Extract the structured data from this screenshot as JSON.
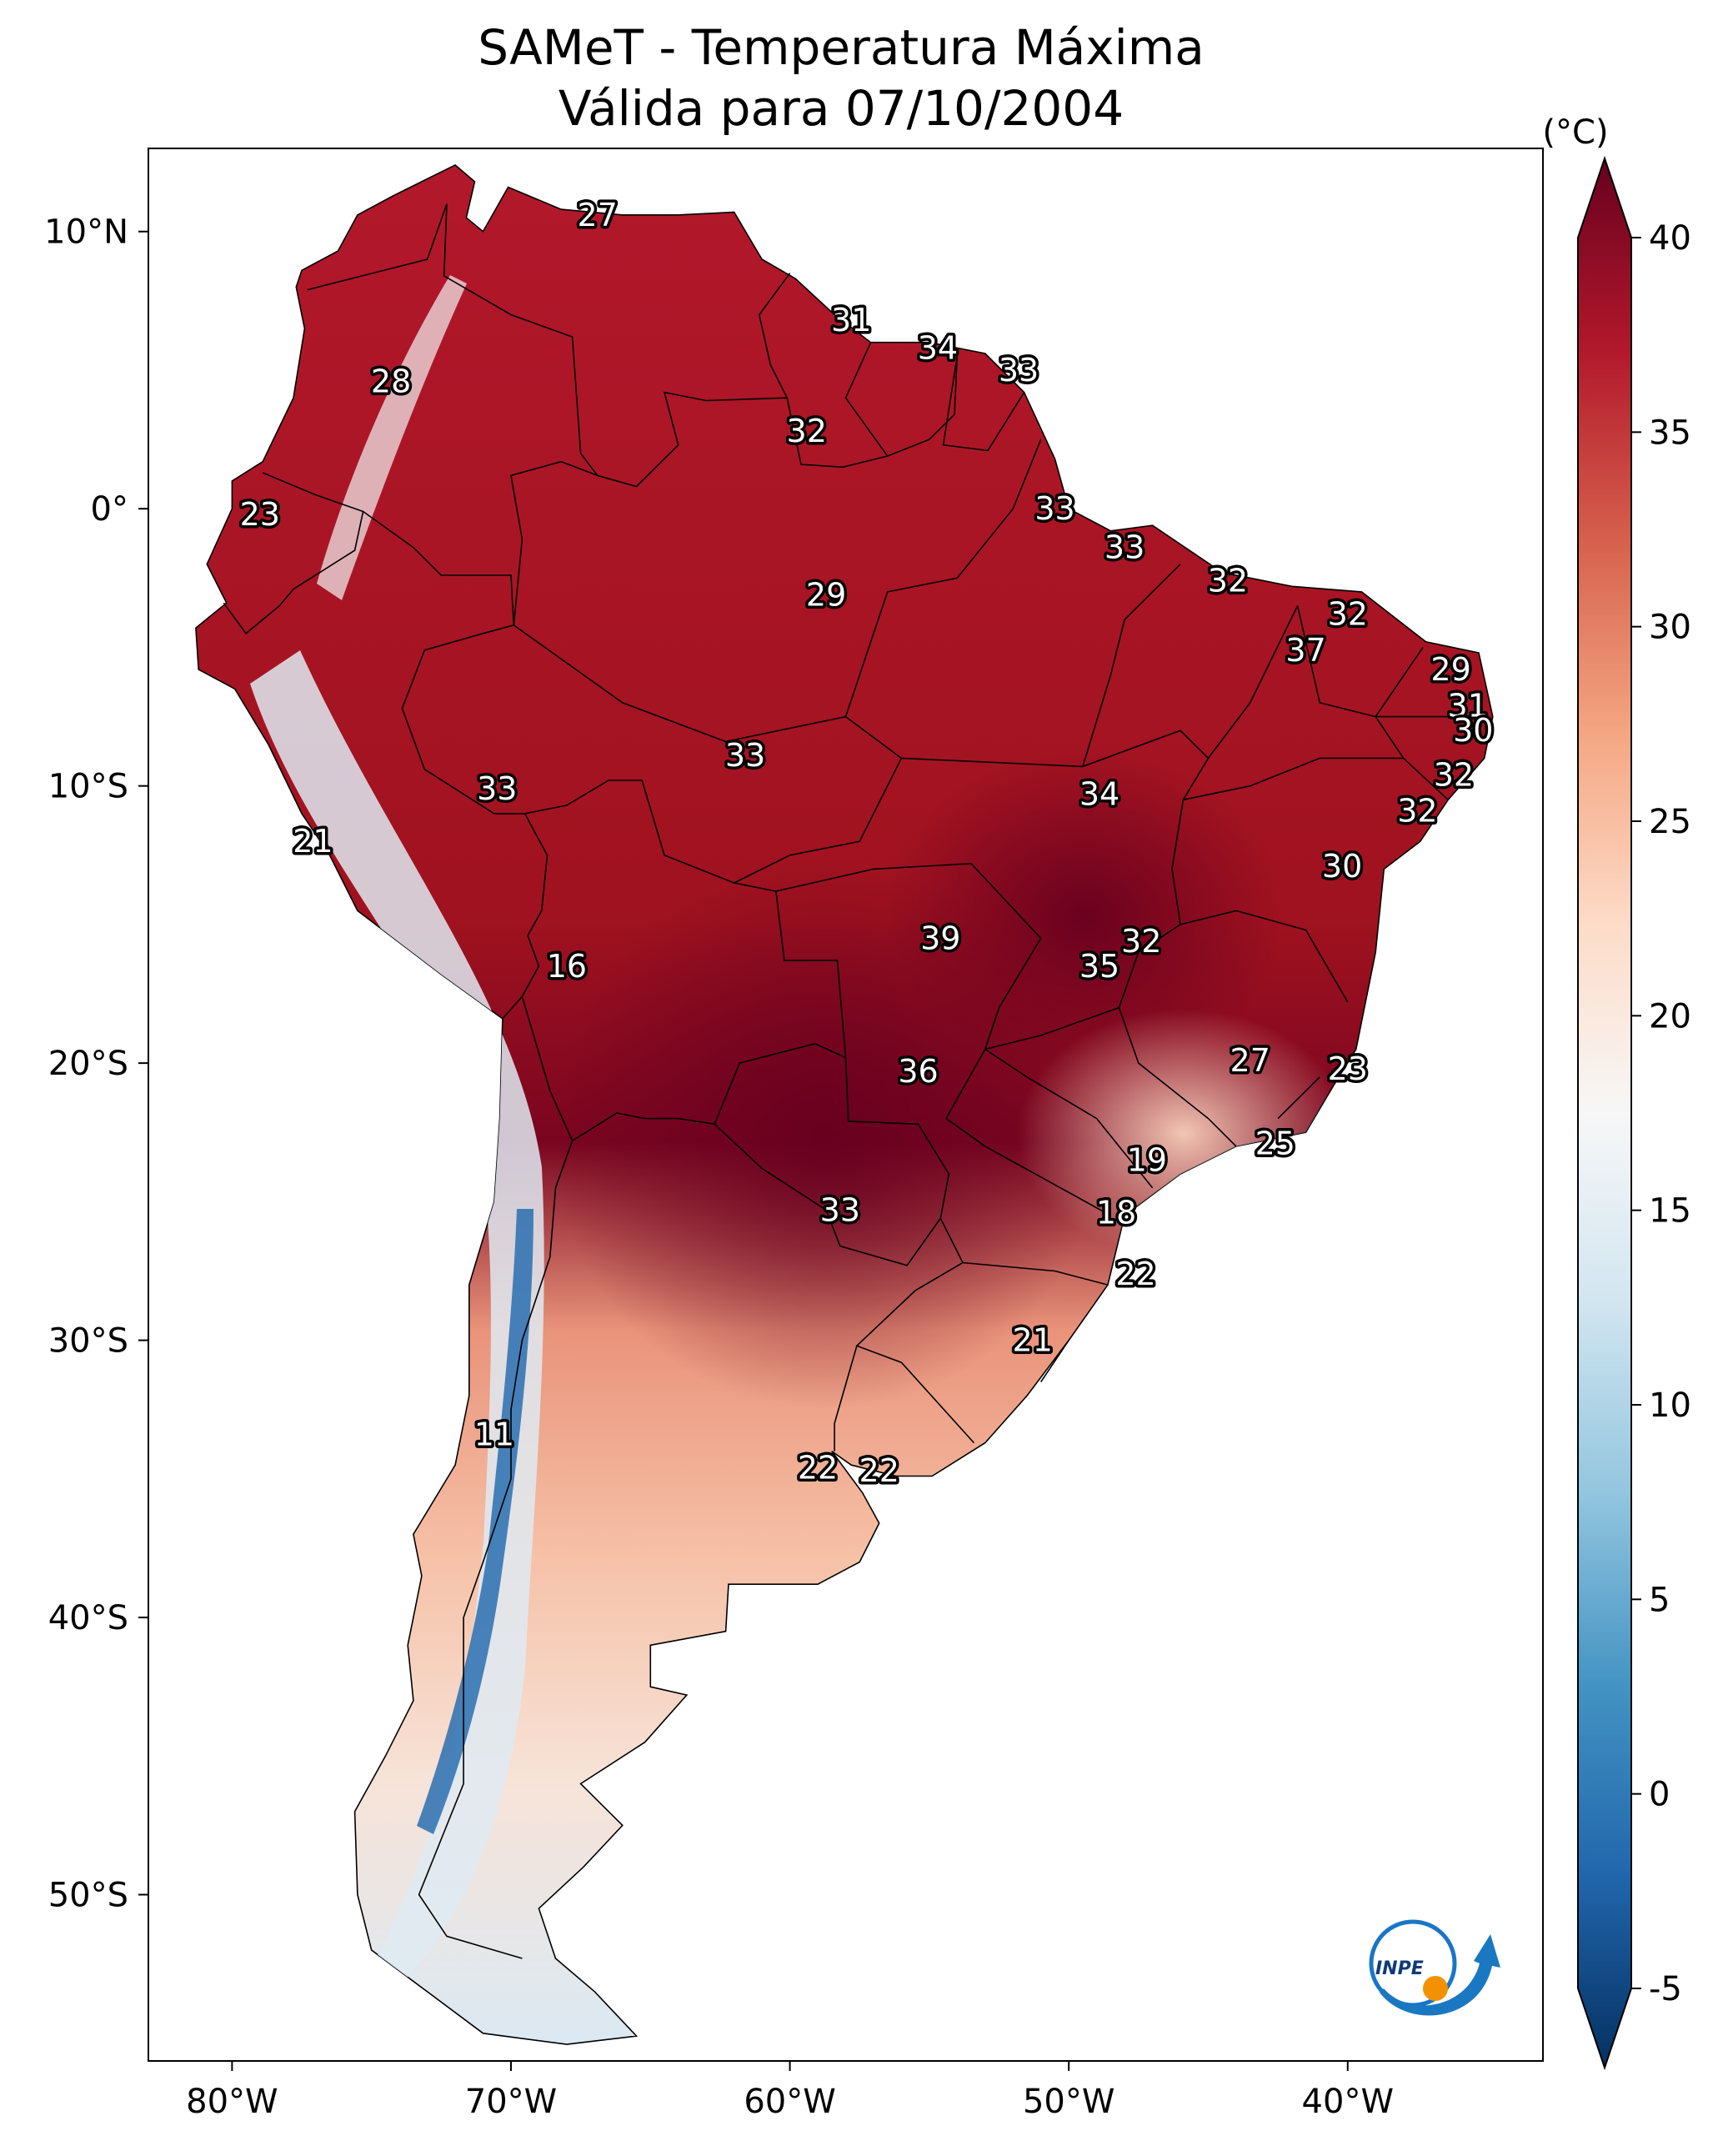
{
  "title": {
    "line1": "SAMeT - Temperatura Máxima",
    "line2": "Válida para 07/10/2004"
  },
  "colorbar": {
    "unit": "(°C)",
    "ticks": [
      "40",
      "35",
      "30",
      "25",
      "20",
      "15",
      "10",
      "5",
      "0",
      "-5"
    ],
    "range": [
      -5,
      40
    ],
    "extend": "both",
    "colormap": "RdBu_r",
    "colors": [
      "#053061",
      "#2166ac",
      "#4393c3",
      "#92c5de",
      "#d1e5f0",
      "#f7f7f7",
      "#fddbc7",
      "#f4a582",
      "#d6604d",
      "#b2182b",
      "#67001f"
    ]
  },
  "axes": {
    "lon_ticks": [
      "80°W",
      "70°W",
      "60°W",
      "50°W",
      "40°W"
    ],
    "lat_ticks": [
      "10°N",
      "0°",
      "10°S",
      "20°S",
      "30°S",
      "40°S",
      "50°S"
    ],
    "lon_range": [
      -83,
      -33
    ],
    "lat_range": [
      -56,
      13
    ]
  },
  "logo": {
    "text": "INPE",
    "icon": "inpe-logo"
  },
  "labels": [
    {
      "lon": -66.9,
      "lat": 10.6,
      "text": "27"
    },
    {
      "lon": -74.3,
      "lat": 4.6,
      "text": "28"
    },
    {
      "lon": -57.8,
      "lat": 6.8,
      "text": "31"
    },
    {
      "lon": -54.7,
      "lat": 5.8,
      "text": "34"
    },
    {
      "lon": -51.8,
      "lat": 5.0,
      "text": "33"
    },
    {
      "lon": -59.4,
      "lat": 2.8,
      "text": "32"
    },
    {
      "lon": -79.0,
      "lat": -0.2,
      "text": "23"
    },
    {
      "lon": -50.5,
      "lat": 0.0,
      "text": "33"
    },
    {
      "lon": -48.0,
      "lat": -1.4,
      "text": "33"
    },
    {
      "lon": -44.3,
      "lat": -2.6,
      "text": "32"
    },
    {
      "lon": -58.7,
      "lat": -3.1,
      "text": "29"
    },
    {
      "lon": -40.0,
      "lat": -3.8,
      "text": "32"
    },
    {
      "lon": -41.5,
      "lat": -5.1,
      "text": "37"
    },
    {
      "lon": -36.3,
      "lat": -5.8,
      "text": "29"
    },
    {
      "lon": -35.7,
      "lat": -7.1,
      "text": "31"
    },
    {
      "lon": -35.5,
      "lat": -8.0,
      "text": "30"
    },
    {
      "lon": -61.6,
      "lat": -8.9,
      "text": "33"
    },
    {
      "lon": -36.2,
      "lat": -9.6,
      "text": "32"
    },
    {
      "lon": -70.5,
      "lat": -10.1,
      "text": "33"
    },
    {
      "lon": -48.9,
      "lat": -10.3,
      "text": "34"
    },
    {
      "lon": -37.5,
      "lat": -10.9,
      "text": "32"
    },
    {
      "lon": -77.1,
      "lat": -12.0,
      "text": "21"
    },
    {
      "lon": -40.2,
      "lat": -12.9,
      "text": "30"
    },
    {
      "lon": -54.6,
      "lat": -15.5,
      "text": "39"
    },
    {
      "lon": -47.4,
      "lat": -15.6,
      "text": "32"
    },
    {
      "lon": -68.0,
      "lat": -16.5,
      "text": "16"
    },
    {
      "lon": -48.9,
      "lat": -16.5,
      "text": "35"
    },
    {
      "lon": -43.5,
      "lat": -19.9,
      "text": "27"
    },
    {
      "lon": -55.4,
      "lat": -20.3,
      "text": "36"
    },
    {
      "lon": -40.0,
      "lat": -20.2,
      "text": "23"
    },
    {
      "lon": -42.6,
      "lat": -22.9,
      "text": "25"
    },
    {
      "lon": -47.2,
      "lat": -23.5,
      "text": "19"
    },
    {
      "lon": -58.2,
      "lat": -25.3,
      "text": "33"
    },
    {
      "lon": -48.3,
      "lat": -25.4,
      "text": "18"
    },
    {
      "lon": -47.6,
      "lat": -27.6,
      "text": "22"
    },
    {
      "lon": -51.3,
      "lat": -30.0,
      "text": "21"
    },
    {
      "lon": -70.6,
      "lat": -33.4,
      "text": "11"
    },
    {
      "lon": -59.0,
      "lat": -34.6,
      "text": "22"
    },
    {
      "lon": -56.8,
      "lat": -34.7,
      "text": "22"
    }
  ]
}
